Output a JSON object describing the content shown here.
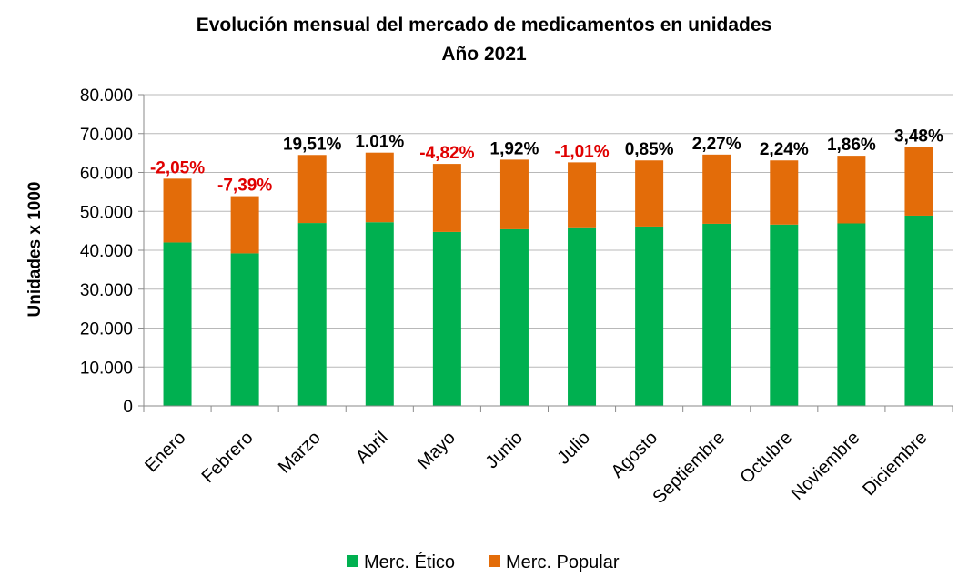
{
  "chart_data": {
    "type": "bar",
    "stacked": true,
    "title": "Evolución mensual del mercado de medicamentos  en unidades",
    "subtitle": "Año 2021",
    "ylabel": "Unidades x 1000",
    "xlabel": "",
    "ylim": [
      0,
      80000
    ],
    "yticks": [
      0,
      10000,
      20000,
      30000,
      40000,
      50000,
      60000,
      70000,
      80000
    ],
    "ytick_labels": [
      "0",
      "10.000",
      "20.000",
      "30.000",
      "40.000",
      "50.000",
      "60.000",
      "70.000",
      "80.000"
    ],
    "grid": true,
    "legend_position": "bottom",
    "categories": [
      "Enero",
      "Febrero",
      "Marzo",
      "Abril",
      "Mayo",
      "Junio",
      "Julio",
      "Agosto",
      "Septiembre",
      "Octubre",
      "Noviembre",
      "Diciembre"
    ],
    "series": [
      {
        "name": "Merc. Ético",
        "color": "#00b050",
        "values": [
          42000,
          39200,
          47000,
          47200,
          44700,
          45400,
          45900,
          46100,
          46800,
          46600,
          46900,
          48900
        ]
      },
      {
        "name": "Merc. Popular",
        "color": "#e36c09",
        "values": [
          16400,
          14700,
          17500,
          17900,
          17500,
          17900,
          16700,
          17000,
          17800,
          16500,
          17400,
          17600
        ]
      }
    ],
    "annotations": [
      {
        "label": "-2,05%",
        "color": "#e00000"
      },
      {
        "label": "-7,39%",
        "color": "#e00000"
      },
      {
        "label": "19,51%",
        "color": "#000000"
      },
      {
        "label": "1.01%",
        "color": "#000000"
      },
      {
        "label": "-4,82%",
        "color": "#e00000"
      },
      {
        "label": "1,92%",
        "color": "#000000"
      },
      {
        "label": "-1,01%",
        "color": "#e00000"
      },
      {
        "label": "0,85%",
        "color": "#000000"
      },
      {
        "label": "2,27%",
        "color": "#000000"
      },
      {
        "label": "2,24%",
        "color": "#000000"
      },
      {
        "label": "1,86%",
        "color": "#000000"
      },
      {
        "label": "3,48%",
        "color": "#000000"
      }
    ]
  }
}
